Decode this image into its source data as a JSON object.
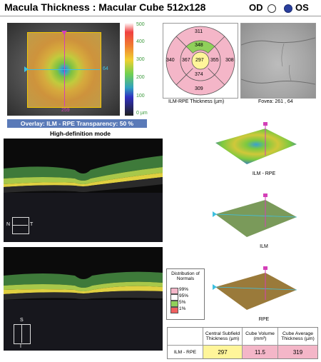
{
  "header": {
    "title": "Macula Thickness : Macular Cube 512x128",
    "od_label": "OD",
    "os_label": "OS",
    "selected_eye": "OS"
  },
  "heatmap": {
    "scale_labels": [
      "500",
      "400",
      "300",
      "200",
      "100",
      "0 µm"
    ],
    "h_marker_value": "64",
    "v_marker_value": "259"
  },
  "overlay": {
    "text": "Overlay: ILM - RPE  Transparency: 50 %"
  },
  "mode": {
    "text": "High-definition mode"
  },
  "etdrs": {
    "center": "297",
    "inner": {
      "superior": "348",
      "nasal": "355",
      "inferior": "374",
      "temporal": "367"
    },
    "outer": {
      "superior": "311",
      "nasal": "308",
      "inferior": "309",
      "temporal": "340"
    },
    "caption": "ILM-RPE Thickness (µm)"
  },
  "fovea": {
    "caption": "Fovea: 261 , 64"
  },
  "bscan": {
    "nasal": "N",
    "temporal": "T",
    "superior": "S",
    "inferior": "I"
  },
  "distribution": {
    "title": "Distribution of Normals",
    "items": [
      {
        "label": "99%",
        "color": "#f4b6c8"
      },
      {
        "label": "95%",
        "color": "#ffffff"
      },
      {
        "label": "5%",
        "color": "#8fd05a"
      },
      {
        "label": "1%",
        "color": "#f06060"
      }
    ]
  },
  "surfaces": {
    "ilm_rpe": "ILM - RPE",
    "ilm": "ILM",
    "rpe": "RPE"
  },
  "table": {
    "headers": [
      "Central Subfield Thickness (µm)",
      "Cube Volume (mm³)",
      "Cube Average Thickness (µm)"
    ],
    "row_label": "ILM - RPE",
    "values": [
      "297",
      "11.5",
      "319"
    ]
  },
  "colors": {
    "overlay_bar": "#5a7ab8",
    "normal": "#f4b6c8",
    "center": "#fff59a",
    "marker_magenta": "#d43fb8",
    "marker_cyan": "#3fc0e0"
  }
}
